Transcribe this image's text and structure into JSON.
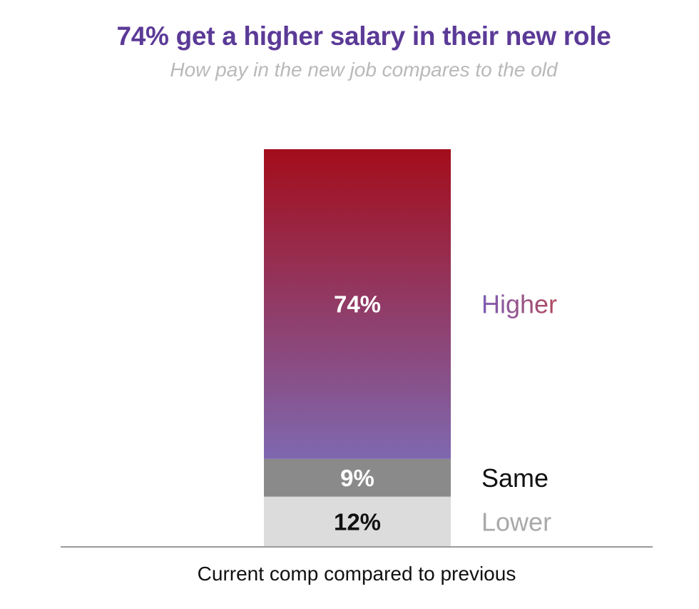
{
  "chart_data": {
    "type": "bar",
    "stacked": true,
    "title": "74% get a higher salary in their new role",
    "subtitle": "How pay in the new job compares to the old",
    "xlabel": "Current comp compared to previous",
    "ylabel": "",
    "categories": [
      ""
    ],
    "series": [
      {
        "name": "Lower",
        "values": [
          12
        ],
        "label": "12%",
        "color": "#dcdcdc",
        "label_color": "#111111",
        "name_color": "#a9a9a9"
      },
      {
        "name": "Same",
        "values": [
          9
        ],
        "label": "9%",
        "color": "#8a8a8a",
        "label_color": "#ffffff",
        "name_color": "#111111"
      },
      {
        "name": "Higher",
        "values": [
          74
        ],
        "label": "74%",
        "gradient": [
          "#a30d1b",
          "#7f68b0"
        ],
        "label_color": "#ffffff",
        "name_gradient": [
          "#7d5db5",
          "#b04a5e"
        ]
      }
    ],
    "legend": "right of bar, inline labels",
    "grid": false
  }
}
